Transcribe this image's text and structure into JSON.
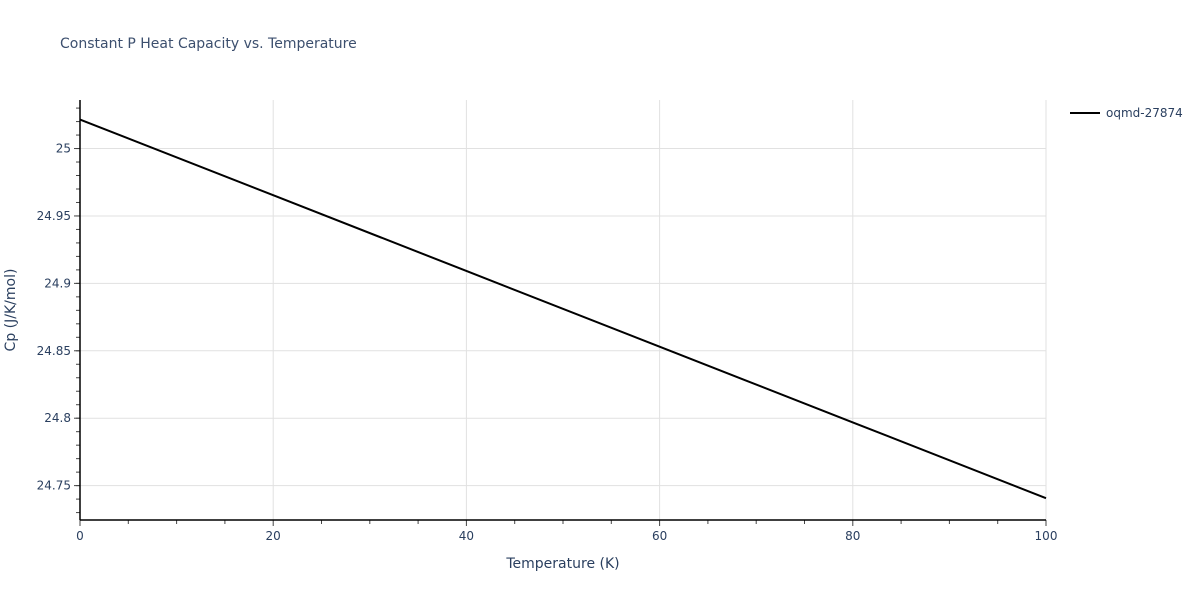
{
  "chart_data": {
    "type": "line",
    "title": "Constant P Heat Capacity vs. Temperature",
    "xlabel": "Temperature (K)",
    "ylabel": "Cp (J/K/mol)",
    "xlim": [
      0,
      100
    ],
    "ylim": [
      24.7245,
      25.036
    ],
    "x_ticks": [
      0,
      20,
      40,
      60,
      80,
      100
    ],
    "x_tick_labels": [
      "0",
      "20",
      "40",
      "60",
      "80",
      "100"
    ],
    "y_ticks": [
      24.75,
      24.8,
      24.85,
      24.9,
      24.95,
      25
    ],
    "y_tick_labels": [
      "24.75",
      "24.8",
      "24.85",
      "24.9",
      "24.95",
      "25"
    ],
    "grid": true,
    "legend_position": "right-top",
    "series": [
      {
        "name": "oqmd-27874",
        "color": "#000000",
        "x": [
          0,
          20,
          40,
          60,
          80,
          100
        ],
        "y": [
          25.0215,
          24.9654,
          24.9092,
          24.853,
          24.7969,
          24.7407
        ]
      }
    ]
  }
}
